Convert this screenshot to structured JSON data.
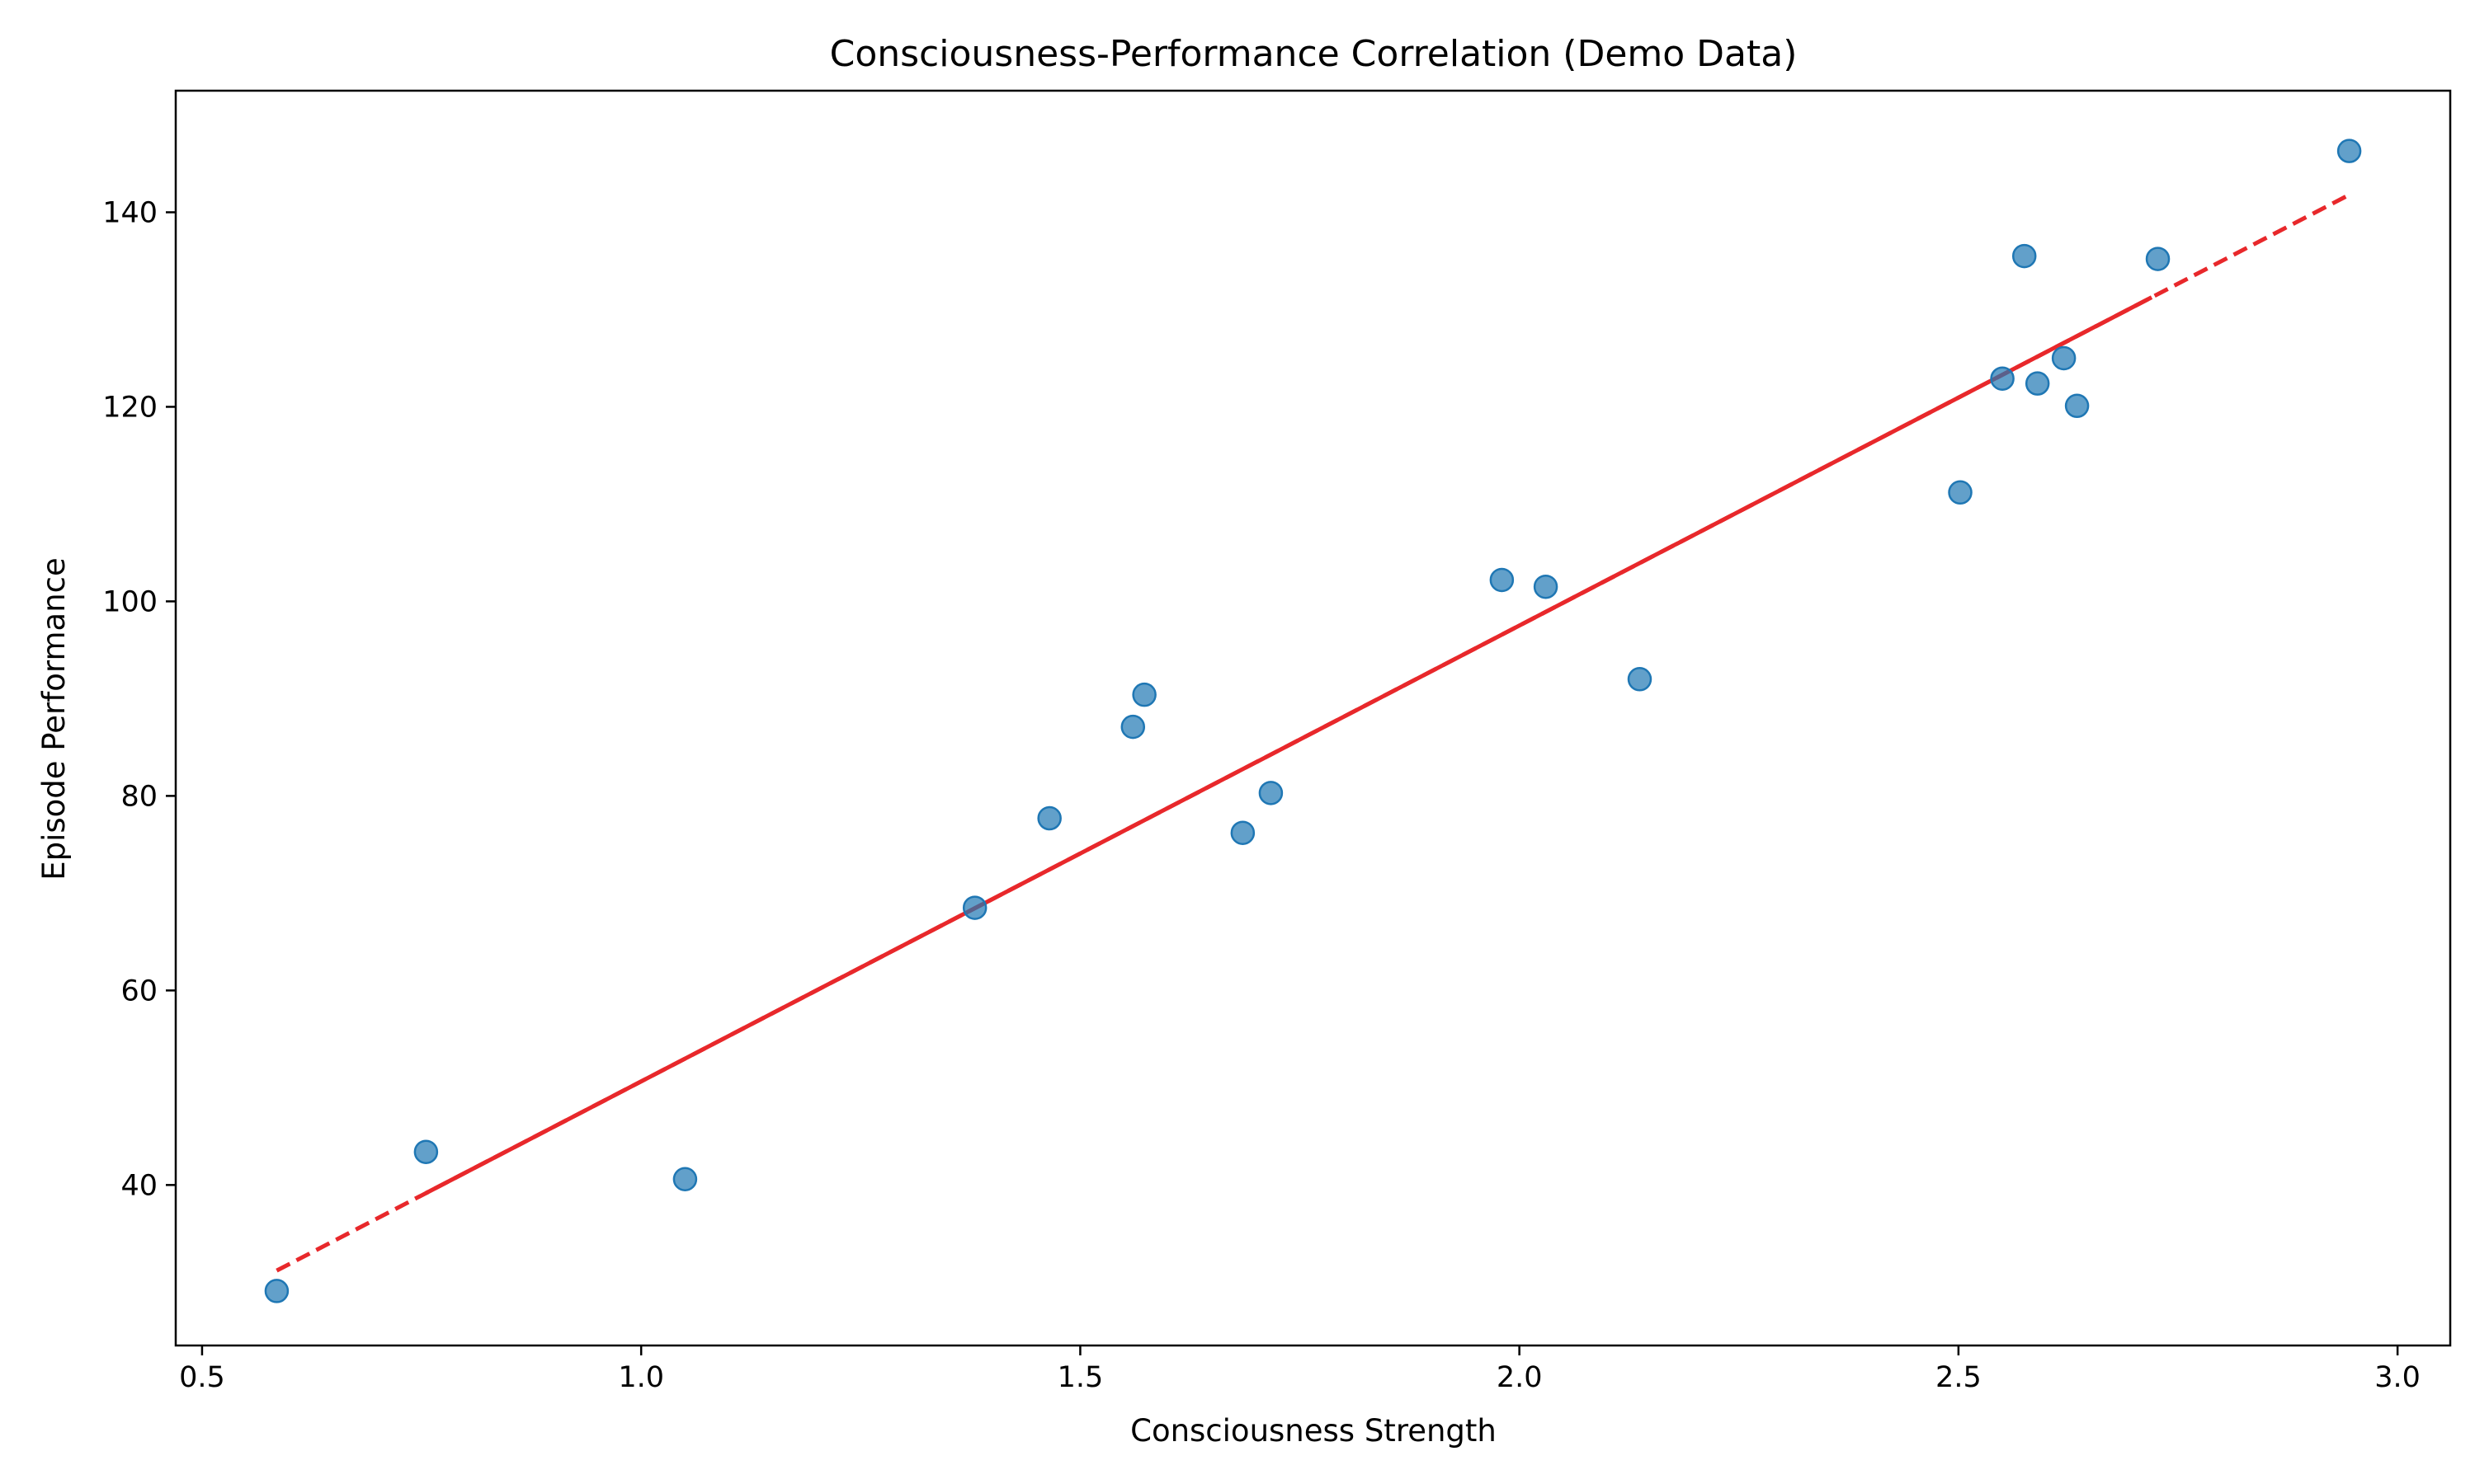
{
  "chart_data": {
    "type": "scatter",
    "title": "Consciousness-Performance Correlation (Demo Data)",
    "xlabel": "Consciousness Strength",
    "ylabel": "Episode Performance",
    "xlim": [
      0.47,
      3.06
    ],
    "ylim": [
      23.5,
      152.5
    ],
    "xticks": [
      0.5,
      1.0,
      1.5,
      2.0,
      2.5,
      3.0
    ],
    "xtick_labels": [
      "0.5",
      "1.0",
      "1.5",
      "2.0",
      "2.5",
      "3.0"
    ],
    "yticks": [
      40,
      60,
      80,
      100,
      120,
      140
    ],
    "ytick_labels": [
      "40",
      "60",
      "80",
      "100",
      "120",
      "140"
    ],
    "grid": false,
    "legend": false,
    "points": [
      {
        "x": 0.585,
        "y": 29.1
      },
      {
        "x": 0.755,
        "y": 43.4
      },
      {
        "x": 1.05,
        "y": 40.6
      },
      {
        "x": 1.38,
        "y": 68.5
      },
      {
        "x": 1.465,
        "y": 77.7
      },
      {
        "x": 1.56,
        "y": 87.1
      },
      {
        "x": 1.573,
        "y": 90.4
      },
      {
        "x": 1.685,
        "y": 76.2
      },
      {
        "x": 1.717,
        "y": 80.3
      },
      {
        "x": 1.98,
        "y": 102.2
      },
      {
        "x": 2.03,
        "y": 101.5
      },
      {
        "x": 2.137,
        "y": 92.0
      },
      {
        "x": 2.502,
        "y": 111.2
      },
      {
        "x": 2.55,
        "y": 122.9
      },
      {
        "x": 2.575,
        "y": 135.5
      },
      {
        "x": 2.59,
        "y": 122.4
      },
      {
        "x": 2.62,
        "y": 125.0
      },
      {
        "x": 2.635,
        "y": 120.1
      },
      {
        "x": 2.727,
        "y": 135.2
      },
      {
        "x": 2.945,
        "y": 146.3
      }
    ],
    "trendline": {
      "x": [
        0.585,
        2.945
      ],
      "y": [
        31.2,
        141.8
      ]
    },
    "colors": {
      "points": "#1f77b4",
      "trendline": "#e8282b"
    }
  }
}
